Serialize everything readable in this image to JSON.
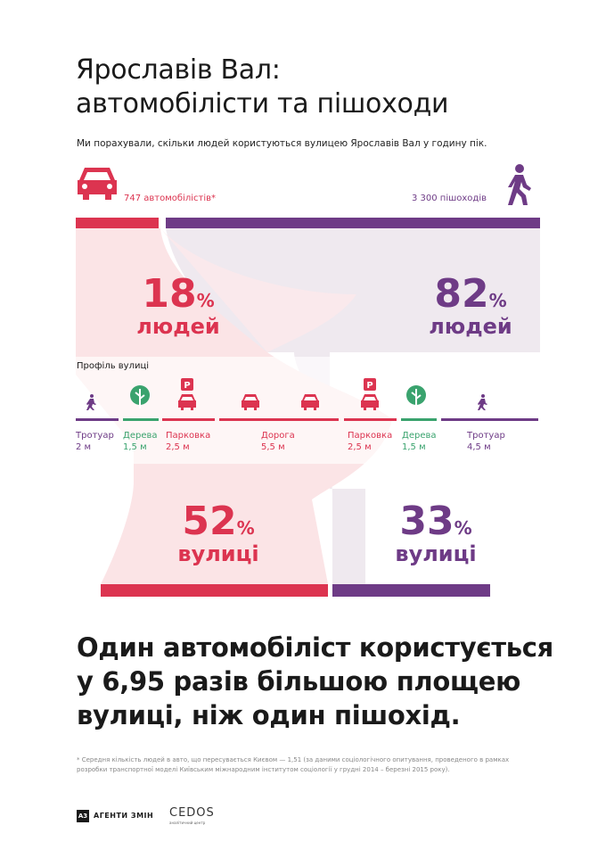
{
  "title": {
    "line1": "Ярославів Вал:",
    "line2": "автомобілісти та пішоходи"
  },
  "subtitle": "Ми порахували, скільки людей користуються  вулицею Ярославів Вал у годину пік.",
  "colors": {
    "motorists": "#dc3450",
    "pedestrians": "#6e3b86",
    "trees": "#3aa36e",
    "flow_motorists": "#fbe4e6",
    "flow_pedestrians": "#efe9ef"
  },
  "motorists": {
    "count_label": "747 автомобілістів*",
    "people_share": {
      "value": "18",
      "unit": "%",
      "word": "людей"
    },
    "street_share": {
      "value": "52",
      "unit": "%",
      "word": "вулиці"
    },
    "icon": "car-icon"
  },
  "pedestrians": {
    "count_label": "3 300 пішоходів",
    "people_share": {
      "value": "82",
      "unit": "%",
      "word": "людей"
    },
    "street_share": {
      "value": "33",
      "unit": "%",
      "word": "вулиці"
    },
    "icon": "walking-person-icon"
  },
  "profile": {
    "heading": "Профіль вулиці",
    "parking_glyph": "P",
    "segments": [
      {
        "label": "Тротуар",
        "width": "2 м",
        "kind": "sidewalk",
        "icon": "pedestrian-icon"
      },
      {
        "label": "Дерева",
        "width": "1,5 м",
        "kind": "trees",
        "icon": "tree-icon"
      },
      {
        "label": "Парковка",
        "width": "2,5 м",
        "kind": "parking",
        "icon": "parked-car-icon"
      },
      {
        "label": "Дорога",
        "width": "5,5 м",
        "kind": "road",
        "icon": "car-icon"
      },
      {
        "label": "Парковка",
        "width": "2,5 м",
        "kind": "parking",
        "icon": "parked-car-icon"
      },
      {
        "label": "Дерева",
        "width": "1,5 м",
        "kind": "trees",
        "icon": "tree-icon"
      },
      {
        "label": "Тротуар",
        "width": "4,5 м",
        "kind": "sidewalk",
        "icon": "pedestrian-icon"
      }
    ]
  },
  "conclusion": {
    "line1": "Один автомобіліст користується",
    "line2": "у 6,95 разів більшою площею",
    "line3": "вулиці, ніж один пішохід."
  },
  "footnote": {
    "line1": "* Середня кількість людей в авто, що пересувається Києвом — 1,51 (за даними соціологічного опитування, проведеного в рамках",
    "line2": "розробки транспортної моделі Київським міжнародним інститутом соціології у грудні 2014 – березні 2015 року)."
  },
  "logos": {
    "agency_mark": "A3",
    "agency": "АГЕНТИ ЗМІН",
    "cedos": "CEDOS",
    "cedos_sub": "аналітичний центр"
  }
}
